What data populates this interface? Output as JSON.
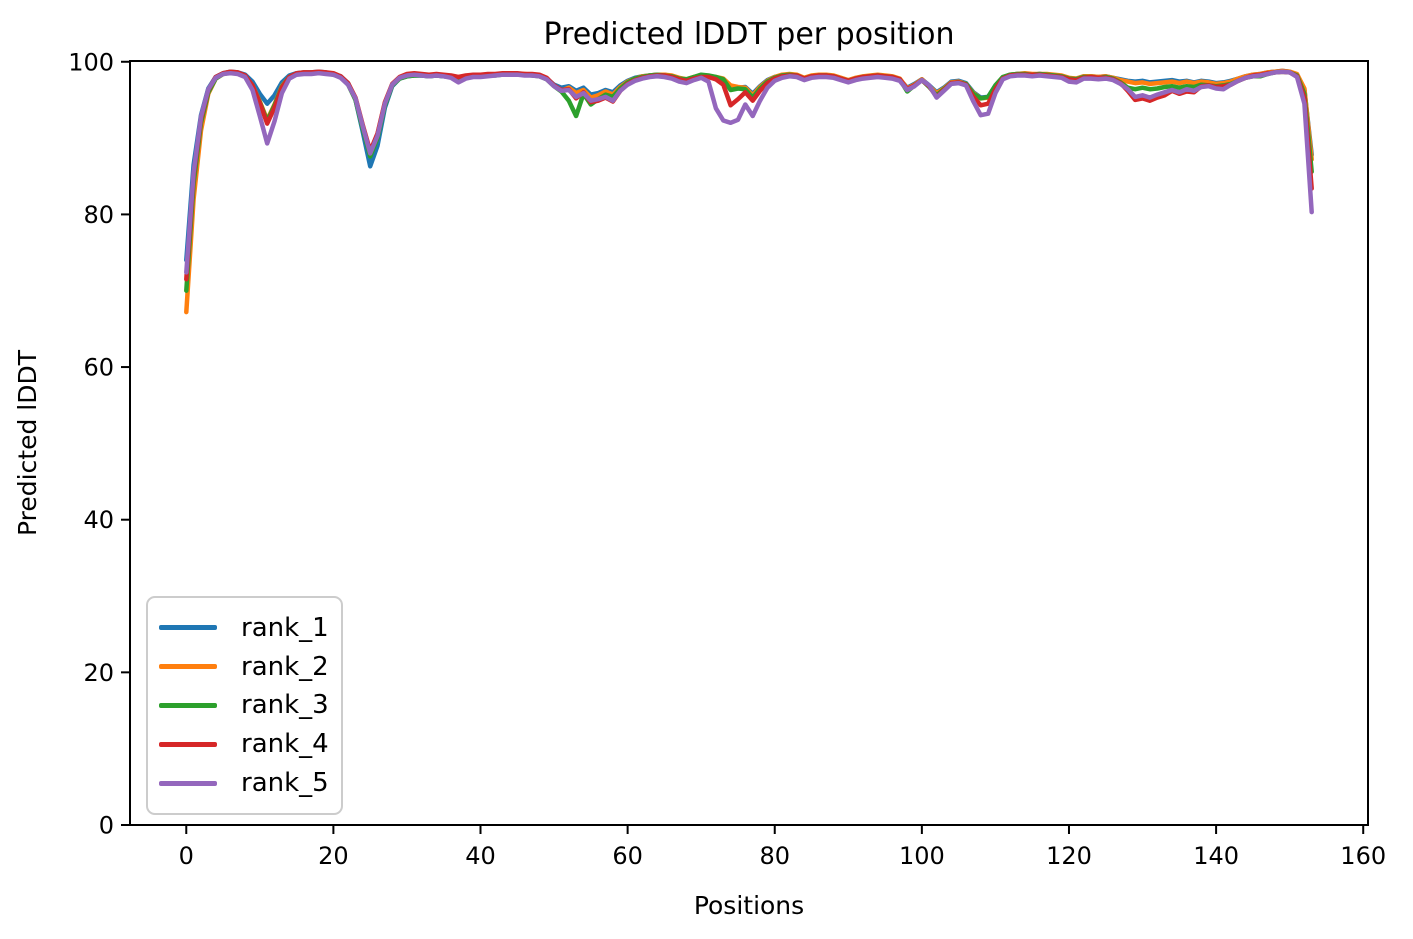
{
  "chart_data": {
    "type": "line",
    "title": "Predicted lDDT per position",
    "xlabel": "Positions",
    "ylabel": "Predicted lDDT",
    "xlim": [
      -7.65,
      160.65
    ],
    "ylim": [
      0,
      100.1
    ],
    "xticks": [
      0,
      20,
      40,
      60,
      80,
      100,
      120,
      140,
      160
    ],
    "yticks": [
      0,
      20,
      40,
      60,
      80,
      100
    ],
    "grid": false,
    "legend_position": "lower left",
    "background_color": "#ffffff",
    "spine_color": "#000000",
    "x": [
      0,
      1,
      2,
      3,
      4,
      5,
      6,
      7,
      8,
      9,
      10,
      11,
      12,
      13,
      14,
      15,
      16,
      17,
      18,
      19,
      20,
      21,
      22,
      23,
      24,
      25,
      26,
      27,
      28,
      29,
      30,
      31,
      32,
      33,
      34,
      35,
      36,
      37,
      38,
      39,
      40,
      41,
      42,
      43,
      44,
      45,
      46,
      47,
      48,
      49,
      50,
      51,
      52,
      53,
      54,
      55,
      56,
      57,
      58,
      59,
      60,
      61,
      62,
      63,
      64,
      65,
      66,
      67,
      68,
      69,
      70,
      71,
      72,
      73,
      74,
      75,
      76,
      77,
      78,
      79,
      80,
      81,
      82,
      83,
      84,
      85,
      86,
      87,
      88,
      89,
      90,
      91,
      92,
      93,
      94,
      95,
      96,
      97,
      98,
      99,
      100,
      101,
      102,
      103,
      104,
      105,
      106,
      107,
      108,
      109,
      110,
      111,
      112,
      113,
      114,
      115,
      116,
      117,
      118,
      119,
      120,
      121,
      122,
      123,
      124,
      125,
      126,
      127,
      128,
      129,
      130,
      131,
      132,
      133,
      134,
      135,
      136,
      137,
      138,
      139,
      140,
      141,
      142,
      143,
      144,
      145,
      146,
      147,
      148,
      149,
      150,
      151,
      152,
      153
    ],
    "series": [
      {
        "name": "rank_1",
        "color": "#1f77b4",
        "values": [
          74.0,
          86.5,
          93.0,
          96.5,
          98.0,
          98.5,
          98.7,
          98.6,
          98.3,
          97.4,
          95.8,
          94.5,
          95.6,
          97.3,
          98.2,
          98.5,
          98.6,
          98.6,
          98.7,
          98.6,
          98.4,
          98.1,
          97.2,
          95.0,
          90.8,
          86.3,
          89.0,
          94.0,
          96.8,
          97.8,
          98.1,
          98.2,
          98.2,
          98.1,
          98.2,
          98.1,
          98.0,
          97.8,
          98.0,
          98.1,
          98.1,
          98.2,
          98.3,
          98.4,
          98.4,
          98.4,
          98.3,
          98.3,
          98.2,
          97.8,
          97.0,
          96.6,
          96.8,
          96.2,
          96.6,
          95.7,
          95.9,
          96.3,
          96.0,
          96.9,
          97.5,
          97.9,
          98.1,
          98.2,
          98.3,
          98.3,
          98.1,
          97.8,
          97.6,
          97.9,
          98.1,
          98.1,
          97.9,
          97.7,
          96.8,
          96.6,
          96.7,
          95.8,
          96.8,
          97.6,
          98.0,
          98.2,
          98.3,
          98.2,
          97.8,
          98.1,
          98.2,
          98.2,
          98.1,
          97.8,
          97.5,
          97.8,
          98.0,
          98.1,
          98.2,
          98.1,
          98.0,
          97.7,
          96.6,
          97.1,
          97.7,
          96.9,
          96.0,
          96.6,
          97.4,
          97.5,
          97.2,
          96.0,
          95.3,
          95.4,
          96.9,
          97.9,
          98.3,
          98.4,
          98.4,
          98.3,
          98.4,
          98.3,
          98.2,
          98.1,
          97.8,
          97.8,
          98.1,
          98.1,
          98.0,
          98.1,
          97.9,
          97.7,
          97.5,
          97.4,
          97.5,
          97.3,
          97.4,
          97.5,
          97.6,
          97.4,
          97.5,
          97.3,
          97.5,
          97.4,
          97.2,
          97.3,
          97.5,
          97.8,
          98.1,
          98.3,
          98.4,
          98.6,
          98.7,
          98.8,
          98.7,
          98.3,
          96.3,
          87.8
        ]
      },
      {
        "name": "rank_2",
        "color": "#ff7f0e",
        "values": [
          67.2,
          82.0,
          91.0,
          95.8,
          97.8,
          98.4,
          98.6,
          98.5,
          98.1,
          96.9,
          94.8,
          92.4,
          94.4,
          96.8,
          98.0,
          98.4,
          98.6,
          98.5,
          98.6,
          98.5,
          98.4,
          98.0,
          97.1,
          95.2,
          91.5,
          88.2,
          90.5,
          94.6,
          97.0,
          97.9,
          98.2,
          98.3,
          98.3,
          98.2,
          98.3,
          98.2,
          98.1,
          97.9,
          98.1,
          98.2,
          98.2,
          98.3,
          98.3,
          98.4,
          98.5,
          98.4,
          98.4,
          98.3,
          98.2,
          97.8,
          96.9,
          96.2,
          96.6,
          95.9,
          96.3,
          95.3,
          95.6,
          96.1,
          95.7,
          96.7,
          97.4,
          97.8,
          98.1,
          98.2,
          98.3,
          98.3,
          98.2,
          97.9,
          97.7,
          98.0,
          98.1,
          98.1,
          98.0,
          97.8,
          96.9,
          96.7,
          96.6,
          95.6,
          96.7,
          97.5,
          98.0,
          98.3,
          98.4,
          98.3,
          97.9,
          98.2,
          98.3,
          98.3,
          98.2,
          97.9,
          97.6,
          97.9,
          98.1,
          98.2,
          98.3,
          98.2,
          98.1,
          97.8,
          96.5,
          97.0,
          97.7,
          96.8,
          95.9,
          96.5,
          97.3,
          97.4,
          97.1,
          95.9,
          95.2,
          95.3,
          96.8,
          97.9,
          98.3,
          98.4,
          98.5,
          98.4,
          98.4,
          98.4,
          98.3,
          98.2,
          97.9,
          97.8,
          98.1,
          98.1,
          98.0,
          98.1,
          97.9,
          97.6,
          97.4,
          97.2,
          97.3,
          97.1,
          97.2,
          97.3,
          97.4,
          97.2,
          97.4,
          97.2,
          97.4,
          97.3,
          97.1,
          97.2,
          97.4,
          97.8,
          98.1,
          98.3,
          98.4,
          98.6,
          98.7,
          98.8,
          98.7,
          98.4,
          96.5,
          87.2
        ]
      },
      {
        "name": "rank_3",
        "color": "#2ca02c",
        "values": [
          70.0,
          84.0,
          92.0,
          96.0,
          97.8,
          98.4,
          98.6,
          98.5,
          98.1,
          96.8,
          94.7,
          92.2,
          94.3,
          96.7,
          98.0,
          98.4,
          98.5,
          98.5,
          98.6,
          98.5,
          98.3,
          98.0,
          97.0,
          95.0,
          91.2,
          87.6,
          90.0,
          94.3,
          96.9,
          97.8,
          98.1,
          98.2,
          98.2,
          98.1,
          98.2,
          98.1,
          98.0,
          97.8,
          98.0,
          98.1,
          98.1,
          98.2,
          98.2,
          98.3,
          98.4,
          98.3,
          98.3,
          98.2,
          98.1,
          97.7,
          96.8,
          96.1,
          94.9,
          92.9,
          95.8,
          94.4,
          95.1,
          95.7,
          95.4,
          96.5,
          97.3,
          97.8,
          98.0,
          98.2,
          98.3,
          98.2,
          98.1,
          97.8,
          97.7,
          98.0,
          98.3,
          98.2,
          98.0,
          97.7,
          96.3,
          96.5,
          96.4,
          95.3,
          96.5,
          97.4,
          97.9,
          98.2,
          98.3,
          98.2,
          97.8,
          98.1,
          98.2,
          98.2,
          98.1,
          97.8,
          97.5,
          97.8,
          98.0,
          98.1,
          98.2,
          98.1,
          98.0,
          97.7,
          96.1,
          96.9,
          97.6,
          96.7,
          95.6,
          96.4,
          97.2,
          97.3,
          97.1,
          95.8,
          95.2,
          95.4,
          96.9,
          98.0,
          98.3,
          98.4,
          98.4,
          98.3,
          98.4,
          98.3,
          98.2,
          98.1,
          97.8,
          97.7,
          98.0,
          98.0,
          97.9,
          98.0,
          97.8,
          97.3,
          96.6,
          96.4,
          96.6,
          96.4,
          96.5,
          96.7,
          96.8,
          96.6,
          96.8,
          96.7,
          97.0,
          96.9,
          96.8,
          96.9,
          97.1,
          97.5,
          97.9,
          98.1,
          98.1,
          98.4,
          98.6,
          98.7,
          98.6,
          98.2,
          95.8,
          85.6
        ]
      },
      {
        "name": "rank_4",
        "color": "#d62728",
        "values": [
          71.5,
          85.0,
          92.5,
          96.3,
          98.0,
          98.5,
          98.7,
          98.6,
          98.2,
          96.9,
          94.6,
          91.9,
          94.0,
          96.6,
          98.0,
          98.5,
          98.6,
          98.6,
          98.7,
          98.6,
          98.5,
          98.1,
          97.2,
          95.3,
          91.7,
          88.3,
          90.6,
          94.7,
          97.1,
          98.0,
          98.4,
          98.5,
          98.4,
          98.3,
          98.4,
          98.3,
          98.2,
          98.0,
          98.2,
          98.3,
          98.3,
          98.4,
          98.4,
          98.5,
          98.5,
          98.5,
          98.4,
          98.4,
          98.3,
          97.9,
          96.9,
          96.3,
          96.4,
          95.2,
          96.0,
          94.7,
          94.9,
          95.3,
          94.8,
          96.2,
          97.1,
          97.6,
          97.9,
          98.1,
          98.2,
          98.2,
          98.0,
          97.7,
          97.5,
          97.8,
          98.0,
          98.0,
          97.7,
          97.0,
          94.3,
          95.1,
          96.0,
          94.9,
          96.2,
          97.2,
          97.8,
          98.1,
          98.2,
          98.2,
          97.8,
          98.1,
          98.2,
          98.2,
          98.1,
          97.8,
          97.5,
          97.8,
          98.0,
          98.1,
          98.2,
          98.1,
          98.0,
          97.7,
          96.4,
          96.9,
          97.6,
          96.8,
          95.4,
          96.3,
          97.2,
          97.3,
          97.0,
          95.4,
          94.3,
          94.5,
          96.4,
          97.8,
          98.2,
          98.3,
          98.3,
          98.3,
          98.3,
          98.2,
          98.1,
          98.0,
          97.7,
          97.6,
          97.9,
          98.0,
          97.9,
          97.9,
          97.7,
          97.2,
          96.2,
          95.0,
          95.2,
          94.9,
          95.3,
          95.6,
          96.2,
          95.8,
          96.1,
          96.0,
          96.8,
          96.9,
          96.7,
          96.8,
          97.0,
          97.5,
          97.9,
          98.2,
          98.3,
          98.5,
          98.6,
          98.7,
          98.6,
          98.1,
          95.3,
          83.4
        ]
      },
      {
        "name": "rank_5",
        "color": "#9467bd",
        "values": [
          72.4,
          85.5,
          92.8,
          96.4,
          97.9,
          98.4,
          98.5,
          98.4,
          98.0,
          96.3,
          92.9,
          89.3,
          92.2,
          95.9,
          97.8,
          98.3,
          98.4,
          98.4,
          98.5,
          98.4,
          98.3,
          97.9,
          97.0,
          95.2,
          91.5,
          88.0,
          90.3,
          94.5,
          97.0,
          97.9,
          98.2,
          98.3,
          98.2,
          98.1,
          98.2,
          98.1,
          97.9,
          97.3,
          97.8,
          98.0,
          98.0,
          98.1,
          98.2,
          98.3,
          98.3,
          98.3,
          98.2,
          98.2,
          98.1,
          97.7,
          96.8,
          96.2,
          96.3,
          95.4,
          95.9,
          94.9,
          95.1,
          95.4,
          94.9,
          96.2,
          97.0,
          97.5,
          97.8,
          98.0,
          98.1,
          98.0,
          97.8,
          97.4,
          97.2,
          97.6,
          97.9,
          97.4,
          93.9,
          92.3,
          92.0,
          92.4,
          94.4,
          92.9,
          94.9,
          96.6,
          97.5,
          97.9,
          98.1,
          98.0,
          97.6,
          97.9,
          98.0,
          98.0,
          97.9,
          97.6,
          97.3,
          97.6,
          97.8,
          97.9,
          98.0,
          97.9,
          97.8,
          97.5,
          96.3,
          96.8,
          97.6,
          96.9,
          95.3,
          96.2,
          97.1,
          97.2,
          96.9,
          94.8,
          93.0,
          93.2,
          95.9,
          97.7,
          98.1,
          98.2,
          98.2,
          98.1,
          98.2,
          98.1,
          98.0,
          97.9,
          97.4,
          97.3,
          97.8,
          97.8,
          97.7,
          97.8,
          97.6,
          97.1,
          96.4,
          95.4,
          95.6,
          95.3,
          95.7,
          96.0,
          96.3,
          96.0,
          96.4,
          96.2,
          96.7,
          96.8,
          96.5,
          96.4,
          97.0,
          97.5,
          97.9,
          98.1,
          98.2,
          98.4,
          98.6,
          98.7,
          98.6,
          98.0,
          94.5,
          80.3
        ]
      }
    ]
  },
  "legend": {
    "items": [
      {
        "label": "rank_1"
      },
      {
        "label": "rank_2"
      },
      {
        "label": "rank_3"
      },
      {
        "label": "rank_4"
      },
      {
        "label": "rank_5"
      }
    ]
  }
}
